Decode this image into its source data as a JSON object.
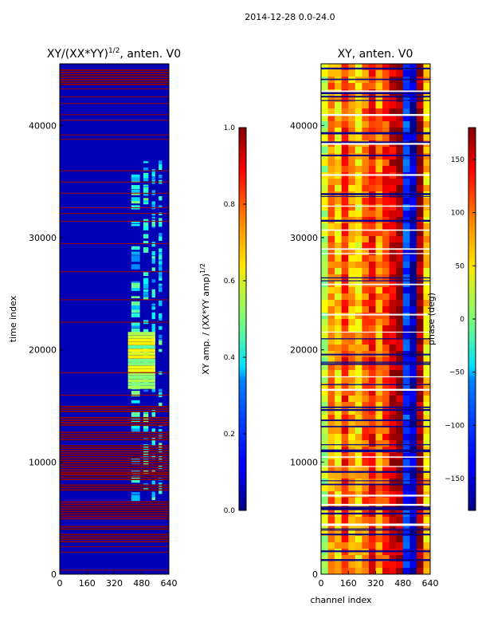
{
  "figure_title": "2014-12-28 0.0-24.0",
  "chart_data": [
    {
      "type": "heatmap",
      "title": "XY/(XX*YY)^{1/2}, anten. V0",
      "title_main": "XY/(XX*YY)",
      "title_exp": "1/2",
      "title_tail": ", anten. V0",
      "xlabel": "",
      "ylabel": "time index",
      "xlim": [
        0,
        640
      ],
      "ylim": [
        0,
        45500
      ],
      "xticks": [
        0,
        160,
        320,
        480,
        640
      ],
      "yticks": [
        0,
        10000,
        20000,
        30000,
        40000
      ],
      "colormap": "jet",
      "colorbar": {
        "label": "XY amp. / (XX*YY amp)^{1/2}",
        "label_main": "XY amp. / (XX*YY amp)",
        "label_exp": "1/2",
        "range": [
          0.0,
          1.0
        ],
        "ticks": [
          0.0,
          0.2,
          0.4,
          0.6,
          0.8,
          1.0
        ],
        "tick_labels": [
          "0.0",
          "0.2",
          "0.4",
          "0.6",
          "0.8",
          "1.0"
        ]
      },
      "red_band_ranges": [
        [
          2800,
          3600
        ],
        [
          3900,
          4300
        ],
        [
          5000,
          6500
        ],
        [
          7500,
          8000
        ],
        [
          8500,
          11500
        ],
        [
          12000,
          12700
        ],
        [
          13300,
          14000
        ],
        [
          14400,
          15000
        ],
        [
          43600,
          45000
        ]
      ],
      "red_line_rows": [
        400,
        2000,
        2500,
        9000,
        16000,
        18000,
        22500,
        24500,
        27000,
        29500,
        31500,
        32200,
        32700,
        34000,
        35000,
        36000,
        38800,
        39200,
        40500,
        41000,
        42000,
        42600,
        43300
      ],
      "bright_column_ranges": [
        [
          420,
          470
        ],
        [
          490,
          520
        ],
        [
          540,
          560
        ],
        [
          580,
          600
        ]
      ],
      "bright_row_range": [
        7000,
        37000
      ],
      "hot_patch": {
        "x": [
          400,
          560
        ],
        "y": [
          16500,
          21500
        ]
      }
    },
    {
      "type": "heatmap",
      "title": "XY, anten. V0",
      "xlabel": "channel index",
      "ylabel": "",
      "xlim": [
        0,
        640
      ],
      "ylim": [
        0,
        45500
      ],
      "xticks": [
        0,
        160,
        320,
        480,
        640
      ],
      "yticks": [
        0,
        10000,
        20000,
        30000,
        40000
      ],
      "colormap": "jet",
      "colorbar": {
        "label": "phase (deg)",
        "range": [
          -180,
          180
        ],
        "ticks": [
          150,
          100,
          50,
          0,
          -50,
          -100,
          -150
        ],
        "tick_labels": [
          "150",
          "100",
          "50",
          "0",
          "−50",
          "−100",
          "−150"
        ]
      },
      "phase_profile": [
        {
          "x": 0,
          "deg": 25
        },
        {
          "x": 40,
          "deg": 90
        },
        {
          "x": 80,
          "deg": 60
        },
        {
          "x": 120,
          "deg": 120
        },
        {
          "x": 160,
          "deg": 75
        },
        {
          "x": 200,
          "deg": 55
        },
        {
          "x": 240,
          "deg": 100
        },
        {
          "x": 280,
          "deg": 130
        },
        {
          "x": 320,
          "deg": 85
        },
        {
          "x": 360,
          "deg": 120
        },
        {
          "x": 400,
          "deg": 150
        },
        {
          "x": 440,
          "deg": 170
        },
        {
          "x": 480,
          "deg": -120
        },
        {
          "x": 520,
          "deg": -160
        },
        {
          "x": 560,
          "deg": 175
        },
        {
          "x": 600,
          "deg": 60
        },
        {
          "x": 640,
          "deg": 30
        }
      ],
      "dark_line_rows_count": 60
    }
  ]
}
